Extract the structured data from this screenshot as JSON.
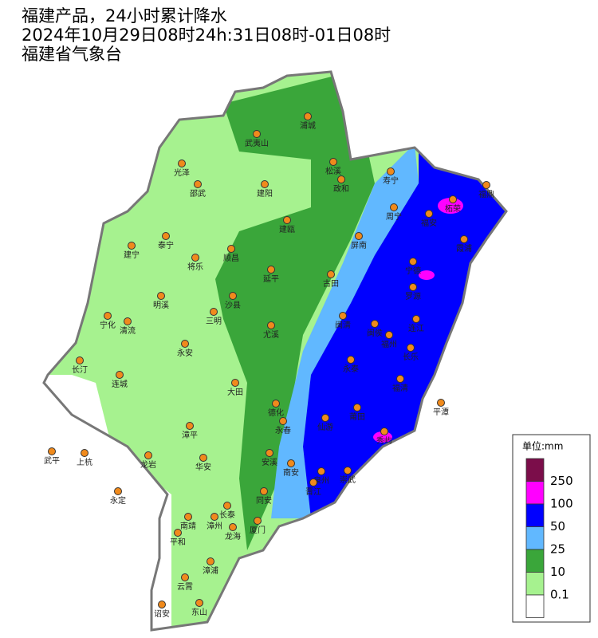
{
  "header": {
    "lines": [
      "福建产品，24小时累计降水",
      "2024年10月29日08时24h:31日08时-01日08时",
      "福建省气象台"
    ]
  },
  "legend": {
    "title": "单位:mm",
    "colors": [
      "#7b0d4a",
      "#ff00ff",
      "#0000ff",
      "#61b8ff",
      "#3aa63a",
      "#a6f28f",
      "#ffffff"
    ],
    "labels": [
      "250",
      "100",
      "50",
      "25",
      "10",
      "0.1"
    ]
  },
  "cities": [
    "浦城",
    "武夷山",
    "光泽",
    "松溪",
    "政和",
    "寿宁",
    "福鼎",
    "邵武",
    "建阳",
    "柘荣",
    "周宁",
    "福安",
    "建瓯",
    "泰宁",
    "建宁",
    "屏南",
    "霞浦",
    "顺昌",
    "将乐",
    "宁德",
    "延平",
    "古田",
    "罗源",
    "明溪",
    "沙县",
    "三明",
    "宁化",
    "清流",
    "闽清",
    "闽侯",
    "连江",
    "尤溪",
    "福州",
    "长乐",
    "永安",
    "长汀",
    "永泰",
    "连城",
    "福清",
    "大田",
    "平潭",
    "德化",
    "莆田",
    "永春",
    "仙游",
    "秀屿",
    "漳平",
    "武平",
    "上杭",
    "龙岩",
    "安溪",
    "华安",
    "南安",
    "泉州",
    "崇武",
    "永定",
    "晋江",
    "同安",
    "长泰",
    "南靖",
    "漳州",
    "厦门",
    "龙海",
    "平和",
    "漳浦",
    "云霄",
    "诏安",
    "东山"
  ]
}
